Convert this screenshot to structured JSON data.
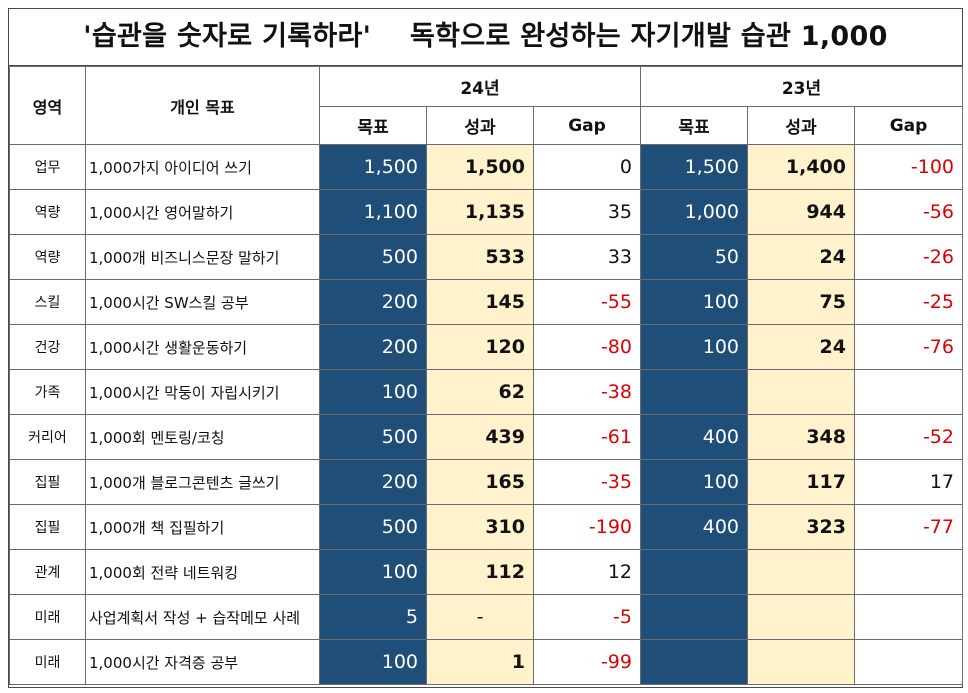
{
  "title": "'습관을 숫자로 기록하라'    독학으로 완성하는 자기개발 습관 1,000",
  "header": {
    "area": "영역",
    "goal": "개인 목표",
    "year_24": "24년",
    "year_23": "23년",
    "target": "목표",
    "result": "성과",
    "gap": "Gap"
  },
  "colors": {
    "target_fill": "#1f4e79",
    "result_fill": "#fff2cc",
    "negative_text": "#e00000"
  },
  "rows": [
    {
      "area": "업무",
      "goal": "1,000가지 아이디어 쓰기",
      "t24": "1,500",
      "r24": "1,500",
      "g24": "0",
      "t23": "1,500",
      "r23": "1,400",
      "g23": "-100"
    },
    {
      "area": "역량",
      "goal": "1,000시간 영어말하기",
      "t24": "1,100",
      "r24": "1,135",
      "g24": "35",
      "t23": "1,000",
      "r23": "944",
      "g23": "-56"
    },
    {
      "area": "역량",
      "goal": "1,000개 비즈니스문장 말하기",
      "t24": "500",
      "r24": "533",
      "g24": "33",
      "t23": "50",
      "r23": "24",
      "g23": "-26"
    },
    {
      "area": "스킬",
      "goal": "1,000시간 SW스킬 공부",
      "t24": "200",
      "r24": "145",
      "g24": "-55",
      "t23": "100",
      "r23": "75",
      "g23": "-25"
    },
    {
      "area": "건강",
      "goal": "1,000시간 생활운동하기",
      "t24": "200",
      "r24": "120",
      "g24": "-80",
      "t23": "100",
      "r23": "24",
      "g23": "-76"
    },
    {
      "area": "가족",
      "goal": "1,000시간 막둥이 자립시키기",
      "t24": "100",
      "r24": "62",
      "g24": "-38",
      "t23": "",
      "r23": "",
      "g23": ""
    },
    {
      "area": "커리어",
      "goal": "1,000회 멘토링/코칭",
      "t24": "500",
      "r24": "439",
      "g24": "-61",
      "t23": "400",
      "r23": "348",
      "g23": "-52"
    },
    {
      "area": "집필",
      "goal": "1,000개 블로그콘텐츠 글쓰기",
      "t24": "200",
      "r24": "165",
      "g24": "-35",
      "t23": "100",
      "r23": "117",
      "g23": "17"
    },
    {
      "area": "집필",
      "goal": "1,000개 책 집필하기",
      "t24": "500",
      "r24": "310",
      "g24": "-190",
      "t23": "400",
      "r23": "323",
      "g23": "-77"
    },
    {
      "area": "관계",
      "goal": "1,000회 전략 네트워킹",
      "t24": "100",
      "r24": "112",
      "g24": "12",
      "t23": "",
      "r23": "",
      "g23": ""
    },
    {
      "area": "미래",
      "goal": "사업계획서 작성 + 습작메모 사례",
      "t24": "5",
      "r24": "-",
      "g24": "-5",
      "t23": "",
      "r23": "",
      "g23": ""
    },
    {
      "area": "미래",
      "goal": "1,000시간 자격증 공부",
      "t24": "100",
      "r24": "1",
      "g24": "-99",
      "t23": "",
      "r23": "",
      "g23": ""
    }
  ]
}
